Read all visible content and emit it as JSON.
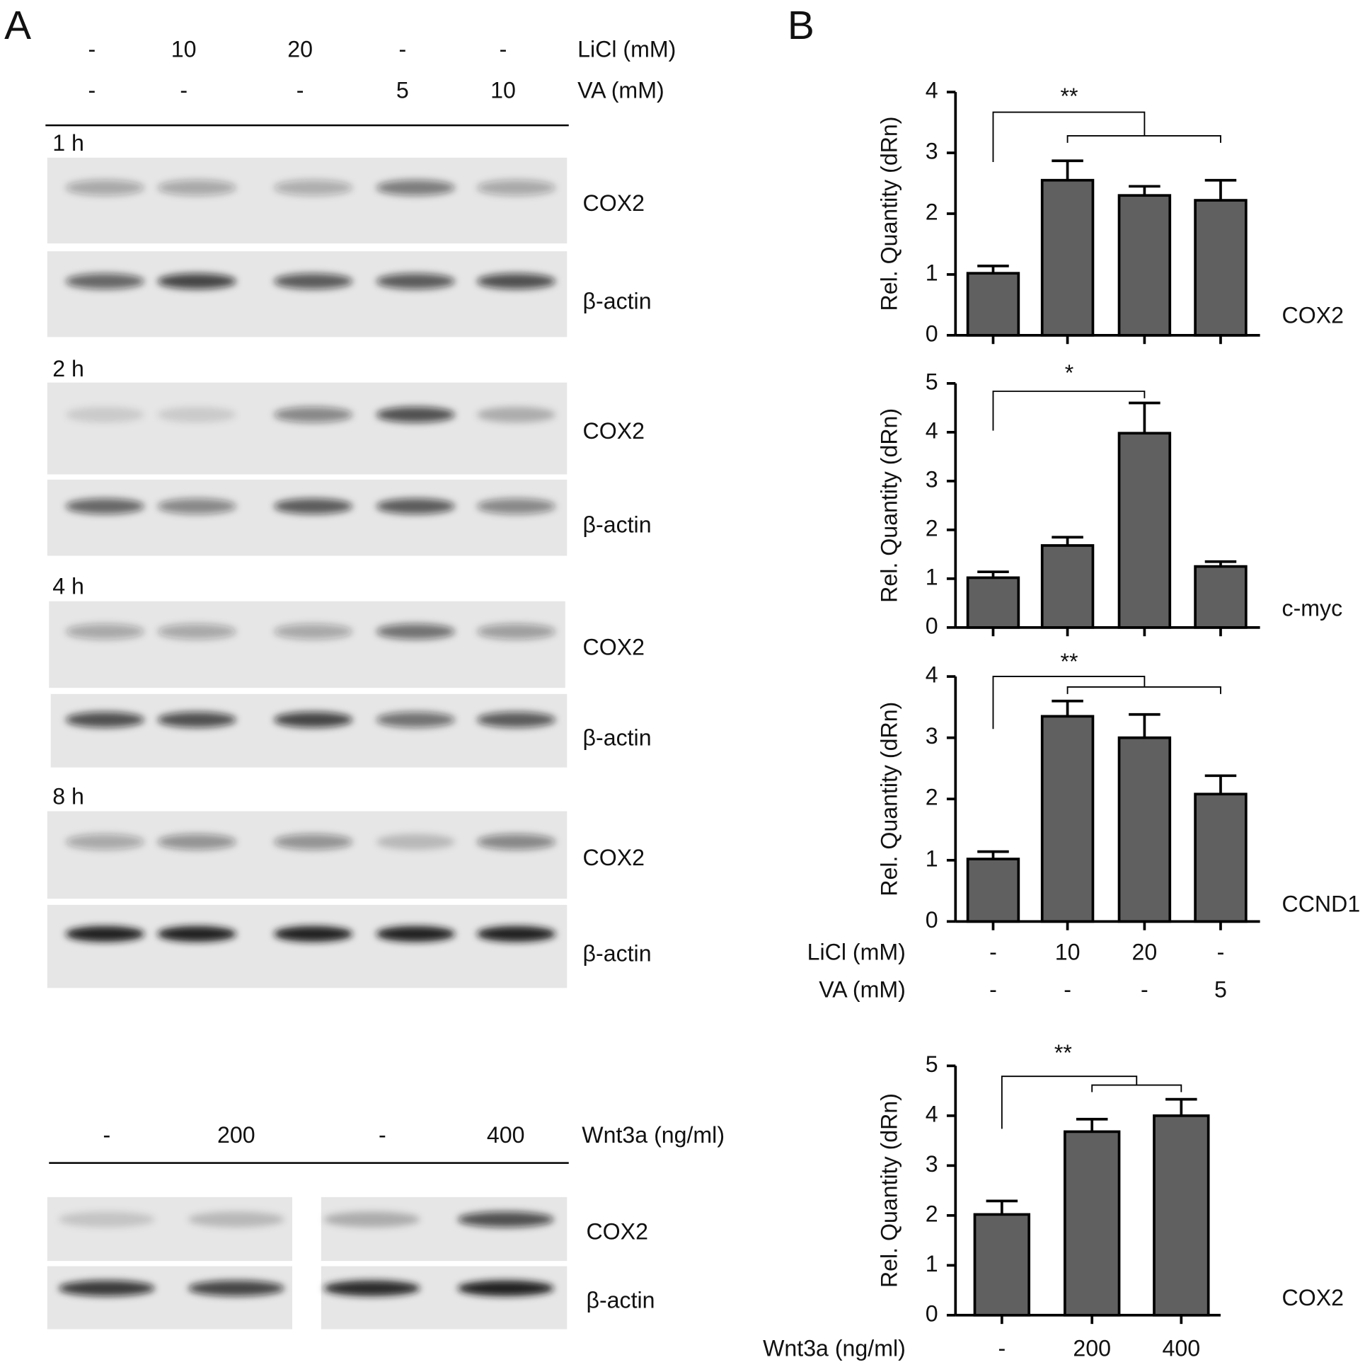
{
  "panel_a": {
    "label": "A",
    "treatment_rows": [
      {
        "values": [
          "-",
          "10",
          "20",
          "-",
          "-"
        ],
        "label": "LiCl (mM)"
      },
      {
        "values": [
          "-",
          "-",
          "-",
          "5",
          "10"
        ],
        "label": "VA (mM)"
      }
    ],
    "timepoints": [
      {
        "time": "1 h",
        "gels": [
          "COX2",
          "β-actin"
        ]
      },
      {
        "time": "2 h",
        "gels": [
          "COX2",
          "β-actin"
        ]
      },
      {
        "time": "4 h",
        "gels": [
          "COX2",
          "β-actin"
        ]
      },
      {
        "time": "8 h",
        "gels": [
          "COX2",
          "β-actin"
        ]
      }
    ],
    "wnt3a": {
      "values": [
        "-",
        "200",
        "-",
        "400"
      ],
      "label": "Wnt3a (ng/ml)",
      "gels": [
        "COX2",
        "β-actin"
      ]
    }
  },
  "panel_b": {
    "label": "B"
  },
  "chart_data": [
    {
      "type": "bar",
      "y_label": "Rel. Quantity (dRn)",
      "gene": "COX2",
      "categories": [
        null,
        null,
        null,
        null
      ],
      "values": [
        1.02,
        2.55,
        2.3,
        2.22
      ],
      "errors": [
        0.12,
        0.32,
        0.15,
        0.33
      ],
      "color": "#606060",
      "ylim": [
        0,
        4
      ],
      "yticks": [
        0,
        1,
        2,
        3,
        4
      ],
      "annotations": [
        "**"
      ]
    },
    {
      "type": "bar",
      "y_label": "Rel. Quantity (dRn)",
      "gene": "c-myc",
      "categories": [
        null,
        null,
        null,
        null
      ],
      "values": [
        1.02,
        1.68,
        3.98,
        1.25
      ],
      "errors": [
        0.12,
        0.17,
        0.62,
        0.1
      ],
      "color": "#606060",
      "ylim": [
        0,
        5
      ],
      "yticks": [
        0,
        1,
        2,
        3,
        4,
        5
      ],
      "annotations": [
        "*"
      ]
    },
    {
      "type": "bar",
      "y_label": "Rel. Quantity (dRn)",
      "gene": "CCND1",
      "categories": [
        "-",
        "10",
        "20",
        "-"
      ],
      "categories_label": "LiCl (mM)",
      "categories2": [
        "-",
        "-",
        "-",
        "5"
      ],
      "categories2_label": "VA (mM)",
      "values": [
        1.02,
        3.35,
        3.0,
        2.08
      ],
      "errors": [
        0.12,
        0.25,
        0.38,
        0.3
      ],
      "color": "#606060",
      "ylim": [
        0,
        4
      ],
      "yticks": [
        0,
        1,
        2,
        3,
        4
      ],
      "annotations": [
        "**"
      ]
    },
    {
      "type": "bar",
      "y_label": "Rel. Quantity (dRn)",
      "gene": "COX2",
      "categories": [
        "-",
        "200",
        "400"
      ],
      "categories_label": "Wnt3a (ng/ml)",
      "values": [
        2.02,
        3.68,
        4.0
      ],
      "errors": [
        0.27,
        0.25,
        0.33
      ],
      "color": "#606060",
      "ylim": [
        0,
        5
      ],
      "yticks": [
        0,
        1,
        2,
        3,
        4,
        5
      ],
      "annotations": [
        "**"
      ]
    }
  ]
}
